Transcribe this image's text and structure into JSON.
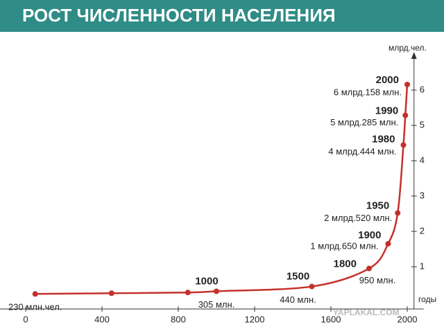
{
  "chart_data": {
    "type": "line",
    "title": "РОСТ  ЧИСЛЕННОСТИ НАСЕЛЕНИЯ",
    "x_label": "годы",
    "y_label": "млрд.чел.",
    "watermark": "YAPLAKAL.COM",
    "x": [
      50,
      450,
      850,
      1000,
      1500,
      1800,
      1900,
      1950,
      1980,
      1990,
      2000
    ],
    "year_labeled": [
      false,
      false,
      false,
      true,
      true,
      true,
      true,
      true,
      true,
      true,
      true
    ],
    "series": [
      {
        "color": "#c4302b",
        "values": [
          0.23,
          0.25,
          0.27,
          0.305,
          0.44,
          0.95,
          1.65,
          2.52,
          4.444,
          5.285,
          6.158
        ],
        "value_labels": [
          "230 млн.чел.",
          null,
          null,
          "305 млн.",
          "440 млн.",
          "950 млн.",
          "1 млрд.650 млн.",
          "2 млрд.520 млн.",
          "4 млрд.444 млн.",
          "5 млрд.285 млн.",
          "6 млрд.158 млн."
        ]
      }
    ],
    "xlim": [
      -100,
      2050
    ],
    "xticks": [
      0,
      400,
      800,
      1200,
      1600,
      2000
    ],
    "ylim": [
      0,
      7
    ],
    "yticks": [
      1,
      2,
      3,
      4,
      5,
      6
    ]
  }
}
